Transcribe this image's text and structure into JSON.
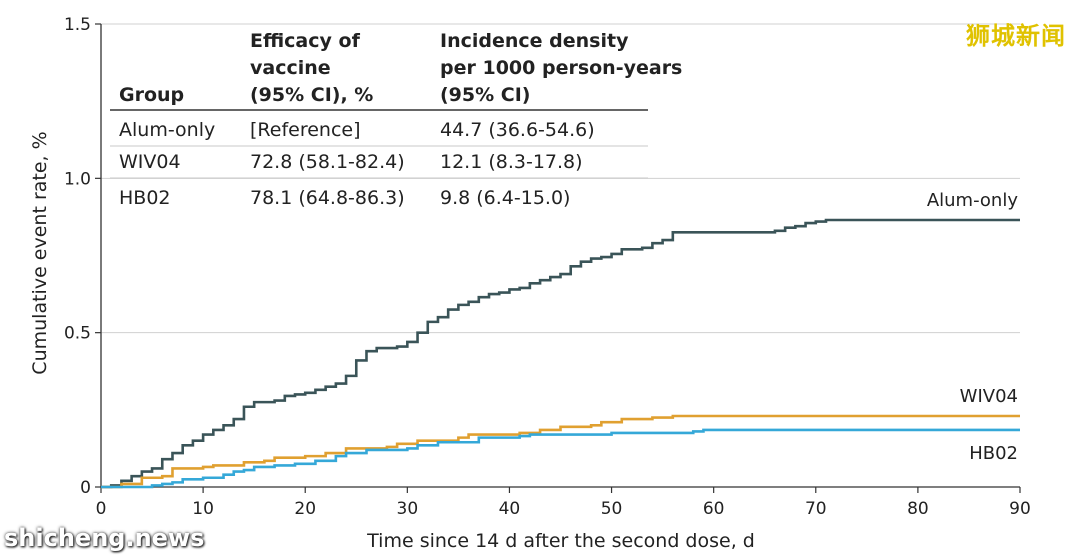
{
  "watermarks": {
    "top_right": "狮城新闻",
    "bottom_left": "shicheng.news"
  },
  "chart_data": {
    "type": "line",
    "xlabel": "Time since 14 d after the second dose, d",
    "ylabel": "Cumulative event rate, %",
    "xlim": [
      0,
      90
    ],
    "ylim": [
      0,
      1.5
    ],
    "x_ticks": [
      "0",
      "10",
      "20",
      "30",
      "40",
      "50",
      "60",
      "70",
      "80",
      "90"
    ],
    "y_ticks": [
      "0",
      "0.5",
      "1.0",
      "1.5"
    ],
    "grid": "horizontal",
    "series": [
      {
        "name": "Alum-only",
        "color": "#3a5458",
        "points": [
          [
            0,
            0
          ],
          [
            1,
            0.005
          ],
          [
            2,
            0.02
          ],
          [
            3,
            0.035
          ],
          [
            4,
            0.05
          ],
          [
            5,
            0.06
          ],
          [
            6,
            0.09
          ],
          [
            7,
            0.11
          ],
          [
            8,
            0.135
          ],
          [
            9,
            0.15
          ],
          [
            10,
            0.17
          ],
          [
            11,
            0.185
          ],
          [
            12,
            0.2
          ],
          [
            13,
            0.22
          ],
          [
            14,
            0.26
          ],
          [
            15,
            0.275
          ],
          [
            16,
            0.275
          ],
          [
            17,
            0.28
          ],
          [
            18,
            0.295
          ],
          [
            19,
            0.3
          ],
          [
            20,
            0.305
          ],
          [
            21,
            0.315
          ],
          [
            22,
            0.325
          ],
          [
            23,
            0.335
          ],
          [
            24,
            0.36
          ],
          [
            25,
            0.41
          ],
          [
            26,
            0.44
          ],
          [
            27,
            0.45
          ],
          [
            28,
            0.45
          ],
          [
            29,
            0.455
          ],
          [
            30,
            0.47
          ],
          [
            31,
            0.5
          ],
          [
            32,
            0.535
          ],
          [
            33,
            0.55
          ],
          [
            34,
            0.575
          ],
          [
            35,
            0.59
          ],
          [
            36,
            0.6
          ],
          [
            37,
            0.615
          ],
          [
            38,
            0.625
          ],
          [
            39,
            0.63
          ],
          [
            40,
            0.64
          ],
          [
            41,
            0.645
          ],
          [
            42,
            0.66
          ],
          [
            43,
            0.67
          ],
          [
            44,
            0.68
          ],
          [
            45,
            0.69
          ],
          [
            46,
            0.715
          ],
          [
            47,
            0.73
          ],
          [
            48,
            0.74
          ],
          [
            49,
            0.745
          ],
          [
            50,
            0.755
          ],
          [
            51,
            0.77
          ],
          [
            52,
            0.77
          ],
          [
            53,
            0.775
          ],
          [
            54,
            0.79
          ],
          [
            55,
            0.8
          ],
          [
            56,
            0.825
          ],
          [
            60,
            0.825
          ],
          [
            66,
            0.83
          ],
          [
            67,
            0.84
          ],
          [
            68,
            0.845
          ],
          [
            69,
            0.855
          ],
          [
            70,
            0.86
          ],
          [
            71,
            0.865
          ],
          [
            90,
            0.865
          ]
        ]
      },
      {
        "name": "WIV04",
        "color": "#e0a030",
        "points": [
          [
            0,
            0
          ],
          [
            2,
            0.01
          ],
          [
            4,
            0.03
          ],
          [
            6,
            0.035
          ],
          [
            7,
            0.06
          ],
          [
            10,
            0.065
          ],
          [
            11,
            0.07
          ],
          [
            14,
            0.08
          ],
          [
            16,
            0.085
          ],
          [
            17,
            0.095
          ],
          [
            20,
            0.1
          ],
          [
            22,
            0.11
          ],
          [
            24,
            0.125
          ],
          [
            28,
            0.13
          ],
          [
            29,
            0.14
          ],
          [
            31,
            0.15
          ],
          [
            35,
            0.16
          ],
          [
            36,
            0.17
          ],
          [
            41,
            0.175
          ],
          [
            43,
            0.185
          ],
          [
            45,
            0.195
          ],
          [
            48,
            0.2
          ],
          [
            49,
            0.21
          ],
          [
            51,
            0.22
          ],
          [
            54,
            0.225
          ],
          [
            56,
            0.23
          ],
          [
            90,
            0.23
          ]
        ]
      },
      {
        "name": "HB02",
        "color": "#35a8d8",
        "points": [
          [
            0,
            0
          ],
          [
            5,
            0.005
          ],
          [
            6,
            0.01
          ],
          [
            7,
            0.015
          ],
          [
            8,
            0.025
          ],
          [
            10,
            0.03
          ],
          [
            12,
            0.04
          ],
          [
            13,
            0.05
          ],
          [
            14,
            0.055
          ],
          [
            15,
            0.065
          ],
          [
            17,
            0.07
          ],
          [
            19,
            0.075
          ],
          [
            21,
            0.085
          ],
          [
            23,
            0.1
          ],
          [
            24,
            0.11
          ],
          [
            26,
            0.12
          ],
          [
            30,
            0.125
          ],
          [
            31,
            0.135
          ],
          [
            33,
            0.145
          ],
          [
            37,
            0.16
          ],
          [
            41,
            0.165
          ],
          [
            42,
            0.17
          ],
          [
            50,
            0.175
          ],
          [
            58,
            0.18
          ],
          [
            59,
            0.185
          ],
          [
            90,
            0.185
          ]
        ]
      }
    ],
    "table": {
      "headers": [
        [
          "Group"
        ],
        [
          "Efficacy of",
          "vaccine",
          "(95% CI), %"
        ],
        [
          "Incidence density",
          "per 1000 person-years",
          "(95% CI)"
        ]
      ],
      "rows": [
        [
          "Alum-only",
          "[Reference]",
          "44.7 (36.6-54.6)"
        ],
        [
          "WIV04",
          "72.8 (58.1-82.4)",
          "12.1 (8.3-17.8)"
        ],
        [
          "HB02",
          "78.1 (64.8-86.3)",
          "9.8 (6.4-15.0)"
        ]
      ]
    }
  }
}
